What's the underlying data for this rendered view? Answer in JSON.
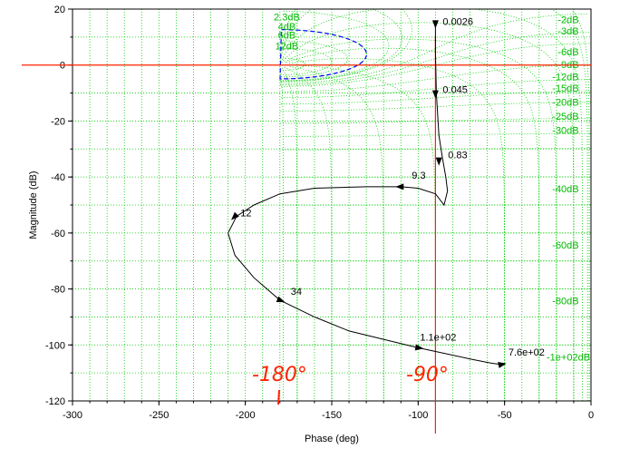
{
  "chart_data": {
    "type": "line",
    "title": "",
    "xlabel": "Phase (deg)",
    "ylabel": "Magnitude (dB)",
    "xlim": [
      -300,
      0
    ],
    "ylim": [
      -120,
      20
    ],
    "xticks": [
      "-300",
      "-250",
      "-200",
      "-150",
      "-100",
      "-50",
      "0"
    ],
    "yticks": [
      "20",
      "0",
      "-20",
      "-40",
      "-60",
      "-80",
      "-100",
      "-120"
    ],
    "grid": "nichols-chart",
    "colors": {
      "curve": "#000000",
      "grid": "#00cc00",
      "grid_label": "#00bb00",
      "closed_loop_circle": "#0000ff",
      "annotation": "#ff2200"
    },
    "series": [
      {
        "x": [
          -90,
          -90,
          -89.5,
          -88,
          -86,
          -84,
          -83,
          -85,
          -90,
          -100,
          -110,
          -130,
          -160,
          -180,
          -195,
          -205,
          -210,
          -206,
          -195,
          -180,
          -160,
          -140,
          -120,
          -100,
          -85,
          -70,
          -58,
          -52
        ],
        "y": [
          15,
          5,
          -10,
          -25,
          -33,
          -40,
          -45,
          -50,
          -46,
          -44,
          -43.5,
          -43.5,
          -44,
          -46,
          -50,
          -54,
          -60,
          -68,
          -76,
          -84,
          -90,
          -95,
          -98,
          -101,
          -103,
          -105,
          -106.5,
          -107
        ]
      }
    ],
    "frequency_markers": [
      {
        "label": "0.0026",
        "x": -90,
        "y": 15
      },
      {
        "label": "0.045",
        "x": -90,
        "y": -10
      },
      {
        "label": "0.83",
        "x": -88,
        "y": -34
      },
      {
        "label": "9.3",
        "x": -110,
        "y": -43.5
      },
      {
        "label": "12",
        "x": -206,
        "y": -54
      },
      {
        "label": "34",
        "x": -180,
        "y": -84
      },
      {
        "label": "1.1e+02",
        "x": -100,
        "y": -101
      },
      {
        "label": "7.6e+02",
        "x": -52,
        "y": -107
      }
    ],
    "grid_labels": [
      "2.3dB",
      "4dB",
      "6dB",
      "12dB",
      "-2dB",
      "-3dB",
      "-6dB",
      "-9dB",
      "-12dB",
      "-15dB",
      "-20dB",
      "-25dB",
      "-30dB",
      "-40dB",
      "-60dB",
      "-80dB",
      "-1e+02dB"
    ],
    "annotations": [
      "-180°",
      "-90°"
    ],
    "reference_lines": {
      "vertical_phase": -90,
      "horizontal_magnitude": 0
    }
  }
}
